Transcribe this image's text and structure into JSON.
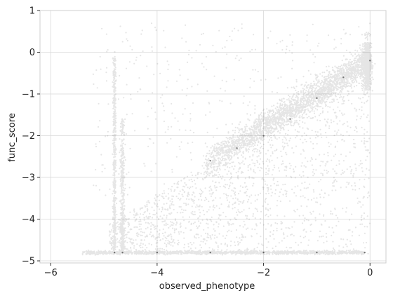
{
  "chart_data": {
    "type": "scatter",
    "title": "",
    "xlabel": "observed_phenotype",
    "ylabel": "func_score",
    "xlim": [
      -6.2,
      0.3
    ],
    "ylim": [
      -5.05,
      1.0
    ],
    "x_ticks": [
      -6,
      -4,
      -2,
      0
    ],
    "y_ticks": [
      1,
      0,
      -1,
      -2,
      -3,
      -4,
      -5
    ],
    "x_tick_labels": [
      "−6",
      "−4",
      "−2",
      "0"
    ],
    "y_tick_labels": [
      "1",
      "0",
      "−1",
      "−2",
      "−3",
      "−4",
      "−5"
    ],
    "grid": true,
    "legend": "none",
    "point_color": "#000000",
    "point_alpha": 0.1,
    "grid_color": "#d9d9d9",
    "frame_color": "#cfcfcf",
    "series": [
      {
        "description_of_density": "dense diagonal band from (-3,-2.7) to (0,-0.2); floor at func_score ≈ -4.8 spanning x -5.5 to -0.1; vertical columns at x ≈ -4.8 and -4.65; vertical cluster at x ≈ 0 spanning y -1 to 0.5",
        "x": [
          -3.0,
          -2.5,
          -2.0,
          -1.5,
          -1.0,
          -0.5,
          0.0,
          -4.8,
          -4.65,
          -4.0,
          -3.0,
          -2.0,
          -1.0,
          -0.1
        ],
        "y": [
          -2.6,
          -2.3,
          -2.0,
          -1.6,
          -1.1,
          -0.6,
          -0.2,
          -4.8,
          -4.8,
          -4.8,
          -4.8,
          -4.8,
          -4.8,
          -4.8
        ]
      }
    ]
  }
}
